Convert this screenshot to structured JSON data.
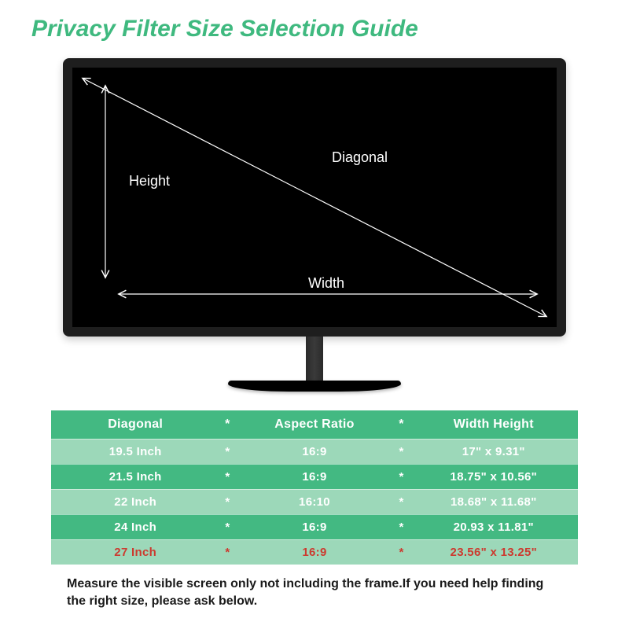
{
  "title": "Privacy Filter Size Selection Guide",
  "colors": {
    "accent": "#3fb97f",
    "table_dark": "#43b982",
    "table_light": "#9cd8b9",
    "highlight_text": "#cc3a2f",
    "monitor_frame": "#1e1e1e",
    "monitor_screen": "#000000",
    "background": "#ffffff",
    "arrow_stroke": "#ffffff"
  },
  "diagram": {
    "width_label": "Width",
    "height_label": "Height",
    "diagonal_label": "Diagonal",
    "label_fontsize": 18,
    "arrow_stroke_width": 1.2
  },
  "table": {
    "headers": {
      "col1": "Diagonal",
      "col2": "Aspect Ratio",
      "col3": "Width Height"
    },
    "rows": [
      {
        "diagonal": "19.5 Inch",
        "ratio": "16:9",
        "wh": "17\" x 9.31\"",
        "shade": "light",
        "highlight": false
      },
      {
        "diagonal": "21.5 Inch",
        "ratio": "16:9",
        "wh": "18.75\" x 10.56\"",
        "shade": "dark",
        "highlight": false
      },
      {
        "diagonal": "22 Inch",
        "ratio": "16:10",
        "wh": "18.68\" x 11.68\"",
        "shade": "light",
        "highlight": false
      },
      {
        "diagonal": "24 Inch",
        "ratio": "16:9",
        "wh": "20.93 x 11.81\"",
        "shade": "dark",
        "highlight": false
      },
      {
        "diagonal": "27 Inch",
        "ratio": "16:9",
        "wh": "23.56\" x 13.25\"",
        "shade": "light",
        "highlight": true
      }
    ]
  },
  "note": "Measure the visible screen only not including the frame.If you need help finding the right size, please ask below.",
  "separator": "*"
}
